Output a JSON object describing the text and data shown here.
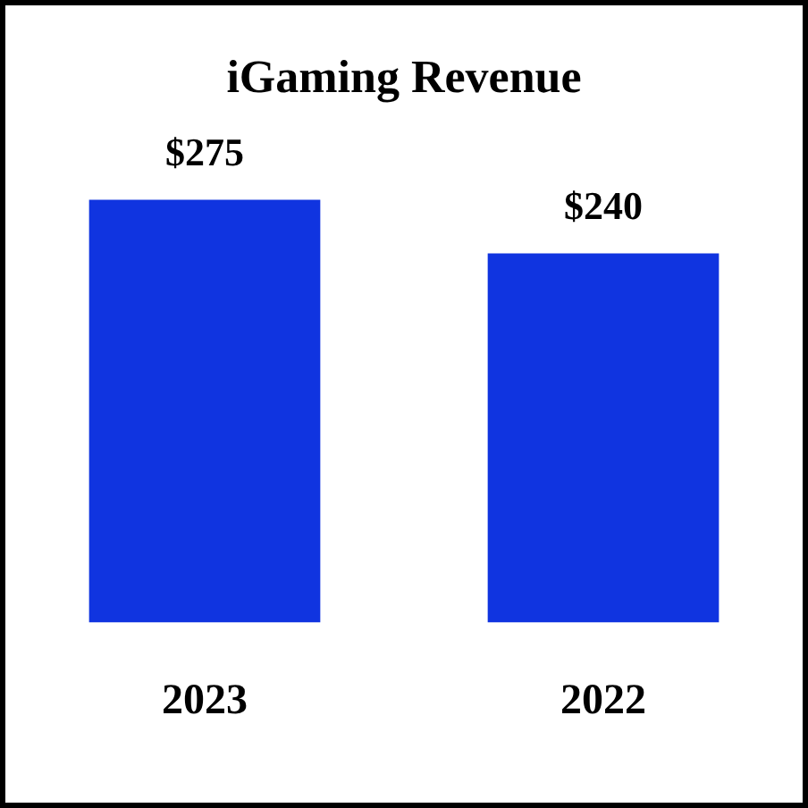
{
  "chart_data": {
    "type": "bar",
    "title": "iGaming Revenue",
    "categories": [
      "2023",
      "2022"
    ],
    "values": [
      275,
      240
    ],
    "value_labels": [
      "$275",
      "$240"
    ],
    "color": "#1034e0",
    "grid": false,
    "legend": false
  }
}
